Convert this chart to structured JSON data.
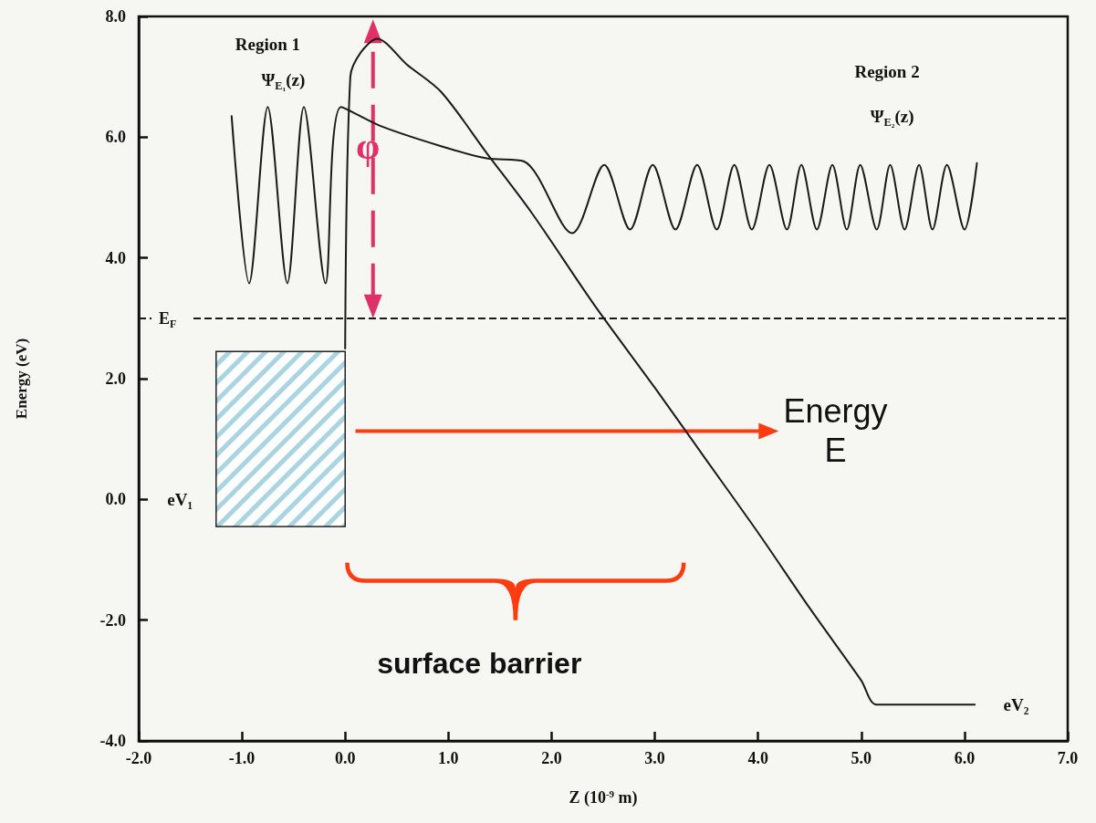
{
  "chart_data": {
    "type": "line",
    "xlabel": "Z (10$^{-9}$ m)",
    "ylabel": "Energy (eV)",
    "xlim": [
      -2.0,
      7.0
    ],
    "ylim": [
      -4.0,
      8.0
    ],
    "xticks": [
      {
        "value": -2,
        "label": "-2.0"
      },
      {
        "value": -1,
        "label": "-1.0"
      },
      {
        "value": 0,
        "label": "0.0"
      },
      {
        "value": 1,
        "label": "1.0"
      },
      {
        "value": 2,
        "label": "2.0"
      },
      {
        "value": 3,
        "label": "3.0"
      },
      {
        "value": 4,
        "label": "4.0"
      },
      {
        "value": 5,
        "label": "5.0"
      },
      {
        "value": 6,
        "label": "6.0"
      },
      {
        "value": 7,
        "label": "7.0"
      }
    ],
    "yticks": [
      {
        "value": -4,
        "label": "-4.0"
      },
      {
        "value": -2,
        "label": "-2.0"
      },
      {
        "value": 0,
        "label": "0.0"
      },
      {
        "value": 2,
        "label": "2.0"
      },
      {
        "value": 4,
        "label": "4.0"
      },
      {
        "value": 6,
        "label": "6.0"
      },
      {
        "value": 8,
        "label": "8.0"
      }
    ],
    "grid": false,
    "marker": "none",
    "line_style": "solid",
    "series": [
      {
        "color": "#1a1a1a",
        "x": [
          0.0,
          0.05,
          0.15,
          0.31,
          0.6,
          0.93,
          1.37,
          1.81,
          2.41,
          3.0,
          3.5,
          4.0,
          4.5,
          5.0,
          5.15,
          6.1
        ],
        "values": [
          2.5,
          7.0,
          7.4,
          7.63,
          7.2,
          6.75,
          5.74,
          4.74,
          3.23,
          1.85,
          0.65,
          -0.55,
          -1.8,
          -3.0,
          -3.4,
          -3.4
        ]
      },
      {
        "color": "#1a1a1a",
        "x": [
          -1.1,
          -0.93,
          -0.75,
          -0.56,
          -0.4,
          -0.19,
          -0.04,
          0.35,
          0.93,
          1.37,
          1.73,
          2.2,
          2.51,
          2.76,
          2.98,
          3.2,
          3.41,
          3.6,
          3.77,
          3.94,
          4.11,
          4.28,
          4.42,
          4.57,
          4.72,
          4.86,
          4.99,
          5.15,
          5.28,
          5.42,
          5.56,
          5.69,
          5.83,
          6.0,
          6.12
        ],
        "values": [
          6.35,
          3.58,
          6.5,
          3.58,
          6.5,
          3.58,
          6.5,
          6.18,
          5.85,
          5.65,
          5.6,
          4.41,
          5.54,
          4.47,
          5.54,
          4.47,
          5.54,
          4.47,
          5.54,
          4.47,
          5.54,
          4.47,
          5.54,
          4.47,
          5.54,
          4.47,
          5.54,
          4.47,
          5.54,
          4.47,
          5.54,
          4.47,
          5.54,
          4.47,
          5.57
        ]
      }
    ],
    "ref_lines": [
      {
        "axis": "y",
        "value": 3.0,
        "label": "E$_{F}$",
        "color": "#1a1a1a",
        "line_style": "dashed"
      }
    ],
    "annotations": [
      "Region 1",
      "Ψ$_{E₁}$(z)",
      "Region 2",
      "Ψ$_{E₂}$(z)",
      "φ",
      "Energy\nE",
      "surface barrier",
      "eV₁",
      "eV₂"
    ]
  }
}
